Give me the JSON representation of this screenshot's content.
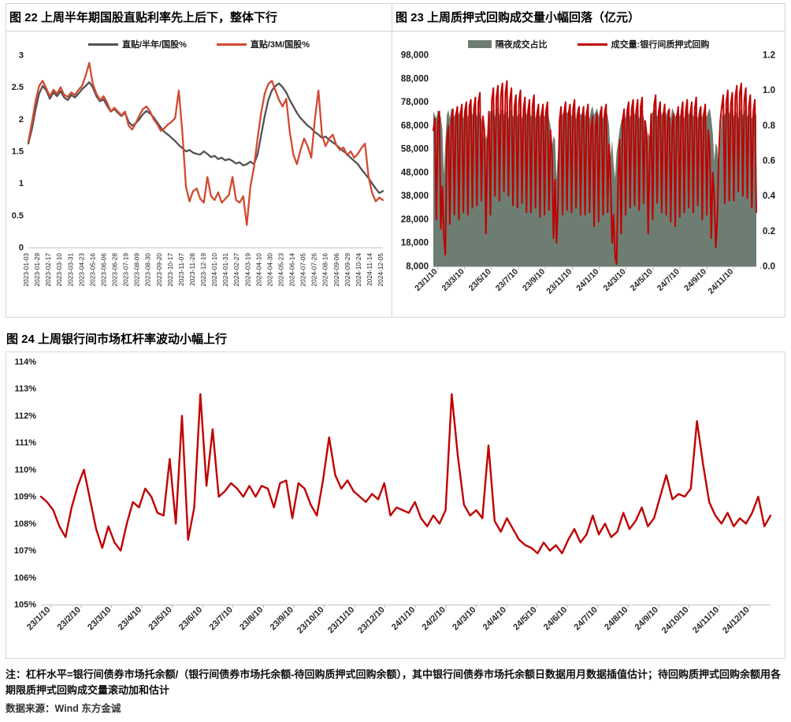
{
  "notes": {
    "note": "注：杠杆水平=银行间债券市场托余额/（银行间债券市场托余额-待回购质押式回购余额），其中银行间债券市场托余额日数据用月数据插值估计；待回购质押式回购余额用各期限质押式回购成交量滚动加和估计",
    "source": "数据来源：Wind 东方金诚"
  },
  "chart_data": [
    {
      "id": "chart22",
      "type": "line",
      "title": "图 22  上周半年期国股直贴利率先上后下，整体下行",
      "ylim": [
        0,
        3
      ],
      "ytick_labels": [
        "0",
        "0.5",
        "1",
        "1.5",
        "2",
        "2.5",
        "3"
      ],
      "grid": false,
      "legend_position": "top",
      "x_labels": [
        "2023-01-03",
        "2023-01-29",
        "2023-02-17",
        "2023-03-10",
        "2023-03-31",
        "2023-04-23",
        "2023-05-16",
        "2023-06-06",
        "2023-06-28",
        "2023-07-19",
        "2023-08-09",
        "2023-08-30",
        "2023-09-20",
        "2023-10-17",
        "2023-11-07",
        "2023-11-28",
        "2023-12-19",
        "2024-01-10",
        "2024-01-31",
        "2024-02-27",
        "2024-03-19",
        "2024-04-10",
        "2024-04-30",
        "2024-05-23",
        "2024-06-14",
        "2024-07-05",
        "2024-07-26",
        "2024-08-16",
        "2024-09-06",
        "2024-09-29",
        "2024-10-24",
        "2024-11-14",
        "2024-12-05"
      ],
      "series": [
        {
          "name": "直贴/半年/国股%",
          "color": "#545054",
          "kind": "line",
          "values": [
            1.62,
            1.85,
            2.15,
            2.4,
            2.52,
            2.45,
            2.32,
            2.42,
            2.36,
            2.44,
            2.34,
            2.3,
            2.38,
            2.34,
            2.4,
            2.47,
            2.52,
            2.58,
            2.5,
            2.36,
            2.28,
            2.31,
            2.21,
            2.12,
            2.16,
            2.1,
            2.05,
            2.1,
            1.96,
            1.9,
            1.94,
            2.0,
            2.08,
            2.13,
            2.09,
            2.03,
            1.95,
            1.87,
            1.8,
            1.76,
            1.71,
            1.66,
            1.6,
            1.55,
            1.5,
            1.52,
            1.48,
            1.46,
            1.45,
            1.5,
            1.46,
            1.41,
            1.43,
            1.38,
            1.4,
            1.36,
            1.38,
            1.35,
            1.31,
            1.33,
            1.28,
            1.3,
            1.34,
            1.3,
            1.45,
            1.75,
            2.05,
            2.3,
            2.45,
            2.52,
            2.56,
            2.5,
            2.42,
            2.3,
            2.2,
            2.1,
            2.02,
            1.96,
            1.9,
            1.86,
            1.8,
            1.76,
            1.71,
            1.73,
            1.68,
            1.64,
            1.6,
            1.55,
            1.5,
            1.46,
            1.4,
            1.35,
            1.3,
            1.22,
            1.15,
            1.08,
            1.0,
            0.92,
            0.85,
            0.88
          ]
        },
        {
          "name": "直贴/3M/国股%",
          "color": "#d14a31",
          "kind": "line",
          "values": [
            1.65,
            1.95,
            2.28,
            2.52,
            2.6,
            2.48,
            2.36,
            2.46,
            2.4,
            2.5,
            2.38,
            2.35,
            2.42,
            2.38,
            2.46,
            2.52,
            2.68,
            2.88,
            2.55,
            2.4,
            2.3,
            2.36,
            2.26,
            2.12,
            2.18,
            2.12,
            2.06,
            2.12,
            1.9,
            1.84,
            1.94,
            2.06,
            2.16,
            2.2,
            2.12,
            2.0,
            1.92,
            1.82,
            1.86,
            1.92,
            1.96,
            2.02,
            2.45,
            1.8,
            0.95,
            0.72,
            0.88,
            0.92,
            0.76,
            0.7,
            1.1,
            0.8,
            0.74,
            0.86,
            0.7,
            0.76,
            0.82,
            1.1,
            0.74,
            0.7,
            0.8,
            0.35,
            0.95,
            1.25,
            1.7,
            2.1,
            2.4,
            2.55,
            2.6,
            2.45,
            2.3,
            2.2,
            2.32,
            1.8,
            1.45,
            1.3,
            1.52,
            1.7,
            1.58,
            1.4,
            2.0,
            2.45,
            1.75,
            1.58,
            1.7,
            1.76,
            1.6,
            1.52,
            1.56,
            1.44,
            1.5,
            1.4,
            1.46,
            1.55,
            1.62,
            1.1,
            0.85,
            0.72,
            0.78,
            0.74
          ]
        }
      ]
    },
    {
      "id": "chart23",
      "type": "area+line",
      "title": "图 23  上周质押式回购成交量小幅回落（亿元）",
      "left_axis": {
        "lim": [
          8000,
          98000
        ],
        "tick_labels": [
          "8,000",
          "18,000",
          "28,000",
          "38,000",
          "48,000",
          "58,000",
          "68,000",
          "78,000",
          "88,000",
          "98,000"
        ]
      },
      "right_axis": {
        "lim": [
          0,
          1.2
        ],
        "tick_labels": [
          "0.0",
          "0.2",
          "0.4",
          "0.6",
          "0.8",
          "1.0",
          "1.2"
        ]
      },
      "grid": false,
      "legend_position": "top",
      "x_labels": [
        "23/1/10",
        "23/3/10",
        "23/5/10",
        "23/7/10",
        "23/9/10",
        "23/11/10",
        "24/1/10",
        "24/3/10",
        "24/5/10",
        "24/7/10",
        "24/9/10",
        "24/11/10"
      ],
      "series": [
        {
          "name": "隔夜成交占比",
          "color": "#6e7d72",
          "kind": "area",
          "axis": "right",
          "values": [
            0.88,
            0.86,
            0.84,
            0.89,
            0.87,
            0.85,
            0.78,
            0.52,
            0.7,
            0.86,
            0.89,
            0.84,
            0.9,
            0.87,
            0.85,
            0.88,
            0.9,
            0.86,
            0.89,
            0.86,
            0.84,
            0.9,
            0.88,
            0.85,
            0.87,
            0.91,
            0.86,
            0.88,
            0.9,
            0.85,
            0.89,
            0.86,
            0.84,
            0.8,
            0.66,
            0.75,
            0.72,
            0.85,
            0.88,
            0.9,
            0.87,
            0.85,
            0.89,
            0.91,
            0.86,
            0.88,
            0.9,
            0.86,
            0.89,
            0.87,
            0.84,
            0.9,
            0.88,
            0.85,
            0.87,
            0.9,
            0.85,
            0.88,
            0.86,
            0.84,
            0.89,
            0.91,
            0.86,
            0.88,
            0.9,
            0.85,
            0.87,
            0.89,
            0.84,
            0.9,
            0.86,
            0.85,
            0.89,
            0.87,
            0.85,
            0.88,
            0.9,
            0.84,
            0.8,
            0.68,
            0.74,
            0.72,
            0.5,
            0.66,
            0.85,
            0.88,
            0.86,
            0.89,
            0.91,
            0.87,
            0.88,
            0.9,
            0.85,
            0.89,
            0.86,
            0.84,
            0.9,
            0.88,
            0.86,
            0.87,
            0.9,
            0.85,
            0.88,
            0.86,
            0.84,
            0.89,
            0.91,
            0.86,
            0.88,
            0.9,
            0.85,
            0.89,
            0.87,
            0.84,
            0.9,
            0.88,
            0.86,
            0.8,
            0.62,
            0.72,
            0.58,
            0.5,
            0.65,
            0.7,
            0.78,
            0.82,
            0.86,
            0.89,
            0.84,
            0.9,
            0.87,
            0.85,
            0.88,
            0.9,
            0.86,
            0.89,
            0.86,
            0.84,
            0.9,
            0.88,
            0.85,
            0.8,
            0.68,
            0.76,
            0.74,
            0.85,
            0.88,
            0.9,
            0.87,
            0.85,
            0.89,
            0.91,
            0.86,
            0.88,
            0.9,
            0.86,
            0.89,
            0.87,
            0.84,
            0.9,
            0.88,
            0.85,
            0.87,
            0.9,
            0.85,
            0.88,
            0.86,
            0.84,
            0.89,
            0.91,
            0.86,
            0.88,
            0.9,
            0.85,
            0.87,
            0.89,
            0.84,
            0.9,
            0.86,
            0.85,
            0.89,
            0.87,
            0.85,
            0.88,
            0.9,
            0.84,
            0.76,
            0.6,
            0.7,
            0.68,
            0.52,
            0.72,
            0.85,
            0.88,
            0.86,
            0.89,
            0.91,
            0.87,
            0.88,
            0.9,
            0.85,
            0.89,
            0.86,
            0.84,
            0.9,
            0.88,
            0.86,
            0.87,
            0.9,
            0.85,
            0.88,
            0.86,
            0.84,
            0.89,
            0.87,
            0.86
          ]
        },
        {
          "name": "成交量:银行间质押式回购",
          "color": "#c00000",
          "kind": "line",
          "axis": "left",
          "values": [
            66000,
            71000,
            28000,
            69000,
            74000,
            24000,
            42000,
            21000,
            13000,
            60000,
            68000,
            26000,
            70000,
            75000,
            30000,
            72000,
            76000,
            28000,
            73000,
            77000,
            31000,
            74000,
            78000,
            30000,
            76000,
            79000,
            33000,
            75000,
            80000,
            34000,
            78000,
            82000,
            36000,
            72000,
            66000,
            22000,
            58000,
            74000,
            30000,
            79000,
            84000,
            38000,
            80000,
            85000,
            36000,
            81000,
            86000,
            40000,
            82000,
            87000,
            38000,
            79000,
            84000,
            34000,
            76000,
            81000,
            33000,
            78000,
            83000,
            35000,
            75000,
            80000,
            31000,
            74000,
            79000,
            31000,
            76000,
            81000,
            33000,
            72000,
            77000,
            29000,
            72000,
            77000,
            30000,
            74000,
            78000,
            32000,
            66000,
            56000,
            20000,
            45000,
            18000,
            35000,
            70000,
            76000,
            30000,
            73000,
            78000,
            32000,
            73000,
            77000,
            31000,
            75000,
            79000,
            33000,
            72000,
            76000,
            30000,
            71000,
            76000,
            30000,
            73000,
            77000,
            31000,
            67000,
            72000,
            25000,
            68000,
            73000,
            27000,
            71000,
            76000,
            30000,
            73000,
            77000,
            31000,
            60000,
            45000,
            18000,
            30000,
            12000,
            9000,
            45000,
            62000,
            22000,
            70000,
            75000,
            30000,
            74000,
            78000,
            33000,
            75000,
            79000,
            34000,
            74000,
            79000,
            32000,
            76000,
            80000,
            35000,
            70000,
            64000,
            22000,
            55000,
            73000,
            28000,
            77000,
            81000,
            35000,
            74000,
            78000,
            31000,
            72000,
            77000,
            30000,
            70000,
            75000,
            27000,
            68000,
            73000,
            25000,
            71000,
            76000,
            29000,
            73000,
            78000,
            31000,
            74000,
            79000,
            33000,
            73000,
            78000,
            31000,
            75000,
            80000,
            34000,
            71000,
            76000,
            28000,
            72000,
            77000,
            30000,
            66000,
            58000,
            20000,
            48000,
            38000,
            16000,
            28000,
            55000,
            70000,
            76000,
            81000,
            35000,
            78000,
            83000,
            36000,
            77000,
            82000,
            36000,
            80000,
            85000,
            40000,
            82000,
            86000,
            38000,
            79000,
            84000,
            37000,
            76000,
            81000,
            33000,
            74000,
            79000,
            31000
          ]
        }
      ]
    },
    {
      "id": "chart24",
      "type": "line",
      "title": "图 24  上周银行间市场杠杆率波动小幅上行",
      "ylim": [
        105,
        114
      ],
      "ytick_labels": [
        "105%",
        "106%",
        "107%",
        "108%",
        "109%",
        "110%",
        "111%",
        "112%",
        "113%",
        "114%"
      ],
      "grid": false,
      "legend_position": "none",
      "x_labels": [
        "23/1/10",
        "23/2/10",
        "23/3/10",
        "23/4/10",
        "23/5/10",
        "23/6/10",
        "23/7/10",
        "23/8/10",
        "23/9/10",
        "23/10/10",
        "23/11/10",
        "23/12/10",
        "24/1/10",
        "24/2/10",
        "24/3/10",
        "24/4/10",
        "24/5/10",
        "24/6/10",
        "24/7/10",
        "24/8/10",
        "24/9/10",
        "24/10/10",
        "24/11/10",
        "24/12/10"
      ],
      "series": [
        {
          "name": "银行间市场杠杆率",
          "color": "#c00000",
          "kind": "line",
          "values": [
            109.0,
            108.8,
            108.5,
            107.9,
            107.5,
            108.6,
            109.4,
            110.0,
            108.9,
            107.8,
            107.1,
            107.9,
            107.3,
            107.0,
            108.0,
            108.8,
            108.6,
            109.3,
            109.0,
            108.4,
            108.3,
            110.4,
            108.0,
            112.0,
            107.4,
            108.6,
            112.8,
            109.4,
            111.5,
            109.0,
            109.2,
            109.5,
            109.3,
            109.0,
            109.4,
            109.0,
            109.4,
            109.3,
            108.6,
            109.5,
            109.6,
            108.2,
            109.5,
            109.3,
            108.7,
            108.3,
            109.6,
            111.2,
            109.8,
            109.3,
            109.6,
            109.2,
            109.0,
            108.8,
            109.1,
            108.9,
            109.5,
            108.3,
            108.6,
            108.5,
            108.4,
            108.8,
            108.2,
            107.9,
            108.3,
            108.0,
            108.5,
            112.8,
            110.5,
            108.7,
            108.3,
            108.5,
            108.2,
            110.9,
            108.1,
            107.7,
            108.2,
            107.8,
            107.4,
            107.2,
            107.1,
            106.9,
            107.3,
            107.0,
            107.2,
            106.9,
            107.4,
            107.8,
            107.3,
            107.6,
            108.3,
            107.6,
            108.0,
            107.5,
            107.7,
            108.4,
            107.8,
            108.1,
            108.6,
            107.9,
            108.2,
            109.0,
            109.8,
            108.9,
            109.1,
            109.0,
            109.3,
            111.8,
            110.2,
            108.8,
            108.3,
            108.0,
            108.4,
            107.9,
            108.2,
            108.0,
            108.4,
            109.0,
            107.9,
            108.3
          ]
        }
      ]
    }
  ]
}
